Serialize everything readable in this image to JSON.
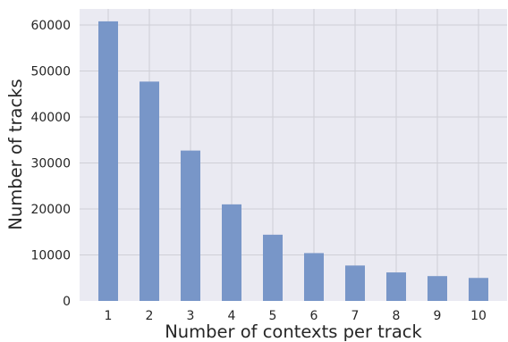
{
  "chart_data": {
    "type": "bar",
    "categories": [
      "1",
      "2",
      "3",
      "4",
      "5",
      "6",
      "7",
      "8",
      "9",
      "10"
    ],
    "values": [
      60800,
      47700,
      32700,
      21000,
      14400,
      10400,
      7700,
      6200,
      5400,
      5000
    ],
    "xlabel": "Number of contexts per track",
    "ylabel": "Number of tracks",
    "ylim": [
      0,
      63500
    ],
    "yticks": [
      0,
      10000,
      20000,
      30000,
      40000,
      50000,
      60000
    ],
    "grid": true,
    "colors": {
      "bar": "#7896c8",
      "plot_bg": "#eaeaf2",
      "grid": "#cfcfd6"
    }
  }
}
